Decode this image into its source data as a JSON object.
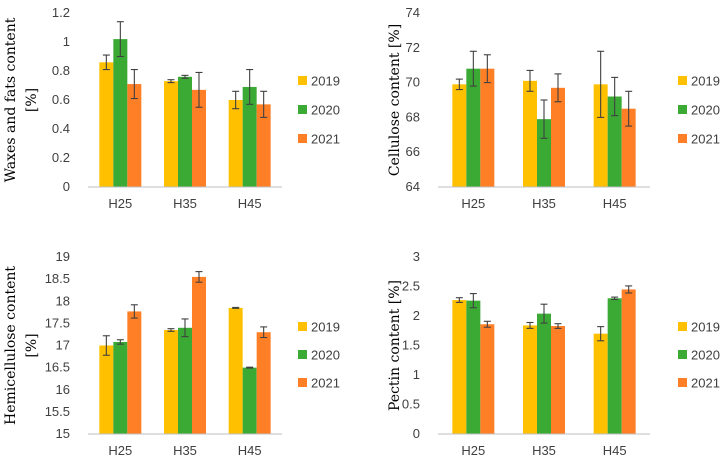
{
  "colors": {
    "2019": "#ffc000",
    "2020": "#3aaa35",
    "2021": "#ff7f27",
    "axis": "#bfbfbf",
    "errorbar": "#404040"
  },
  "chart_data": [
    {
      "type": "bar",
      "title": "",
      "xlabel": "",
      "ylabel_lines": [
        "Waxes and fats content",
        "[%]"
      ],
      "categories": [
        "H25",
        "H35",
        "H45"
      ],
      "ylim": [
        0,
        1.2
      ],
      "yticks": [
        "0",
        "0.2",
        "0.4",
        "0.6",
        "0.8",
        "1",
        "1.2"
      ],
      "series": [
        {
          "name": "2019",
          "values": [
            0.86,
            0.73,
            0.6
          ],
          "errors": [
            0.05,
            0.01,
            0.06
          ]
        },
        {
          "name": "2020",
          "values": [
            1.02,
            0.76,
            0.69
          ],
          "errors": [
            0.12,
            0.01,
            0.12
          ]
        },
        {
          "name": "2021",
          "values": [
            0.71,
            0.67,
            0.57
          ],
          "errors": [
            0.1,
            0.12,
            0.09
          ]
        }
      ],
      "legend": "right"
    },
    {
      "type": "bar",
      "title": "",
      "xlabel": "",
      "ylabel_lines": [
        "Cellulose content [%]"
      ],
      "categories": [
        "H25",
        "H35",
        "H45"
      ],
      "ylim": [
        64,
        74
      ],
      "yticks": [
        "64",
        "66",
        "68",
        "70",
        "72",
        "74"
      ],
      "series": [
        {
          "name": "2019",
          "values": [
            69.9,
            70.1,
            69.9
          ],
          "errors": [
            0.3,
            0.6,
            1.9
          ]
        },
        {
          "name": "2020",
          "values": [
            70.8,
            67.9,
            69.2
          ],
          "errors": [
            1.0,
            1.1,
            1.1
          ]
        },
        {
          "name": "2021",
          "values": [
            70.8,
            69.7,
            68.5
          ],
          "errors": [
            0.8,
            0.8,
            1.0
          ]
        }
      ],
      "legend": "right"
    },
    {
      "type": "bar",
      "title": "",
      "xlabel": "",
      "ylabel_lines": [
        "Hemicellulose content",
        "[%]"
      ],
      "categories": [
        "H25",
        "H35",
        "H45"
      ],
      "ylim": [
        15,
        19
      ],
      "yticks": [
        "15",
        "15.5",
        "16",
        "16.5",
        "17",
        "17.5",
        "18",
        "18.5",
        "19"
      ],
      "series": [
        {
          "name": "2019",
          "values": [
            17.0,
            17.35,
            17.85
          ],
          "errors": [
            0.22,
            0.03,
            0.01
          ]
        },
        {
          "name": "2020",
          "values": [
            17.08,
            17.4,
            16.5
          ],
          "errors": [
            0.05,
            0.2,
            0.01
          ]
        },
        {
          "name": "2021",
          "values": [
            17.77,
            18.55,
            17.3
          ],
          "errors": [
            0.15,
            0.12,
            0.12
          ]
        }
      ],
      "legend": "right"
    },
    {
      "type": "bar",
      "title": "",
      "xlabel": "",
      "ylabel_lines": [
        "Pectin content [%]"
      ],
      "categories": [
        "H25",
        "H35",
        "H45"
      ],
      "ylim": [
        0,
        3
      ],
      "yticks": [
        "0",
        "0.5",
        "1",
        "1.5",
        "2",
        "2.5",
        "3"
      ],
      "series": [
        {
          "name": "2019",
          "values": [
            2.27,
            1.84,
            1.7
          ],
          "errors": [
            0.04,
            0.05,
            0.12
          ]
        },
        {
          "name": "2020",
          "values": [
            2.26,
            2.04,
            2.3
          ],
          "errors": [
            0.12,
            0.16,
            0.02
          ]
        },
        {
          "name": "2021",
          "values": [
            1.86,
            1.83,
            2.45
          ],
          "errors": [
            0.05,
            0.04,
            0.06
          ]
        }
      ],
      "legend": "right"
    }
  ]
}
